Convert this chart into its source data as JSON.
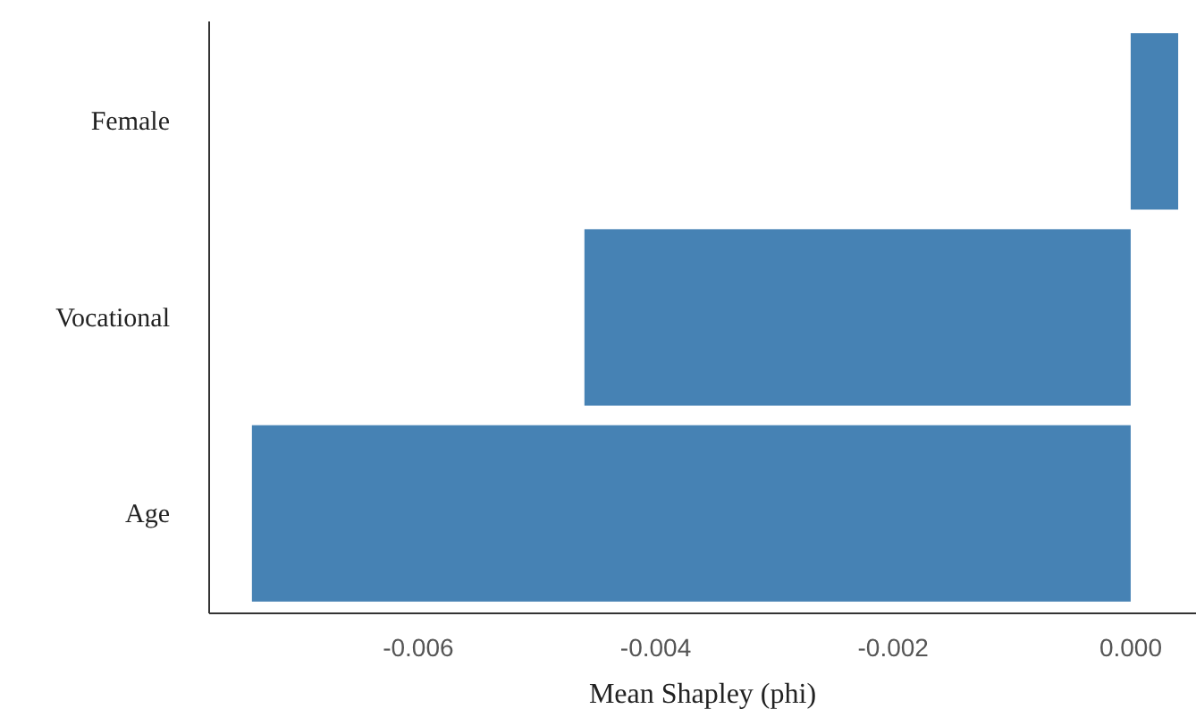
{
  "chart_data": {
    "type": "bar",
    "orientation": "horizontal",
    "xlabel": "Mean Shapley (phi)",
    "categories": [
      "Female",
      "Vocational",
      "Age"
    ],
    "values": [
      0.0004,
      -0.0046,
      -0.0074
    ],
    "color": "#4682b4",
    "xlim": [
      -0.00776,
      0.00055
    ],
    "xticks": [
      {
        "value": -0.006,
        "label": "-0.006"
      },
      {
        "value": -0.004,
        "label": "-0.004"
      },
      {
        "value": -0.002,
        "label": "-0.002"
      },
      {
        "value": 0,
        "label": "0.000"
      }
    ],
    "grid": false
  }
}
